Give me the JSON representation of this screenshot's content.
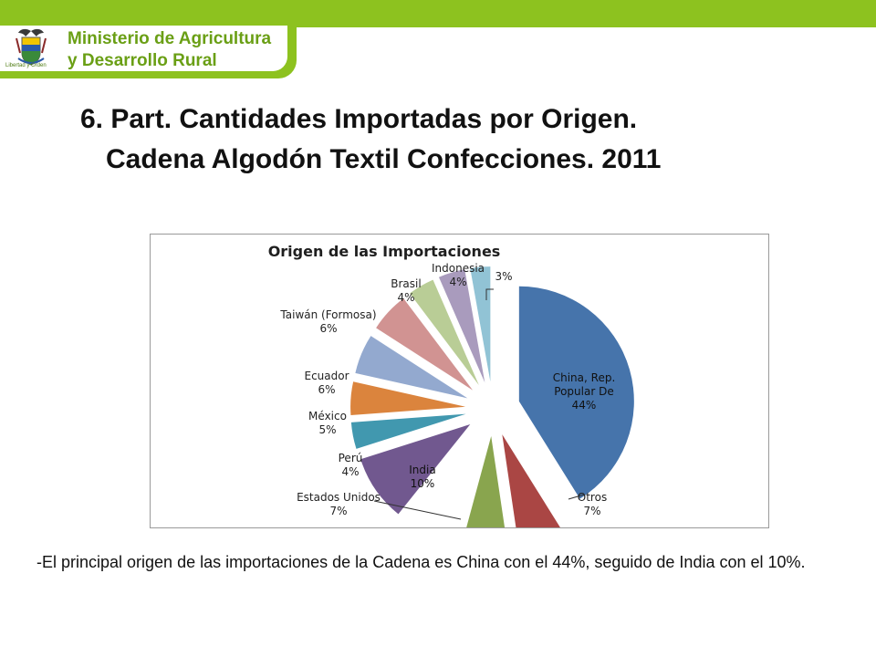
{
  "header": {
    "ministry_line1": "Ministerio de Agricultura",
    "ministry_line2": "y Desarrollo Rural",
    "crest_caption": "Libertad y Orden",
    "brand_green": "#8dc21f",
    "crest_icon": "coat-of-arms-icon"
  },
  "slide": {
    "title_line1": "6.  Part. Cantidades Importadas por Origen.",
    "title_line2": "Cadena Algodón Textil Confecciones.  2011",
    "note": "-El principal origen de las importaciones de la Cadena es China con el 44%, seguido de India con el 10%."
  },
  "chart_data": {
    "type": "pie",
    "title": "Origen de las Importaciones",
    "exploded": true,
    "slices": [
      {
        "label": [
          "China, Rep.",
          "Popular De"
        ],
        "value": 44,
        "value_label": "44%",
        "color": "#4674ab"
      },
      {
        "label": [
          "Otros"
        ],
        "value": 7,
        "value_label": "7%",
        "color": "#aa4644"
      },
      {
        "label": [
          ""
        ],
        "value": 7,
        "value_label": "",
        "color": "#89a54e"
      },
      {
        "label": [
          "Estados Unidos"
        ],
        "value": 7,
        "value_label": "7%",
        "color": "#ffffff"
      },
      {
        "label": [
          "India"
        ],
        "value": 10,
        "value_label": "10%",
        "color": "#71588f"
      },
      {
        "label": [
          "Perú"
        ],
        "value": 4,
        "value_label": "4%",
        "color": "#4198af"
      },
      {
        "label": [
          "México"
        ],
        "value": 5,
        "value_label": "5%",
        "color": "#db843d"
      },
      {
        "label": [
          "Ecuador"
        ],
        "value": 6,
        "value_label": "6%",
        "color": "#93a9cf"
      },
      {
        "label": [
          "Taiwán (Formosa)"
        ],
        "value": 6,
        "value_label": "6%",
        "color": "#d19392"
      },
      {
        "label": [
          "Brasil"
        ],
        "value": 4,
        "value_label": "4%",
        "color": "#b9cd96"
      },
      {
        "label": [
          "Indonesia"
        ],
        "value": 4,
        "value_label": "4%",
        "color": "#a99bbd"
      },
      {
        "label": [
          ""
        ],
        "value": 3,
        "value_label": "3%",
        "color": "#91c3d5"
      }
    ]
  }
}
